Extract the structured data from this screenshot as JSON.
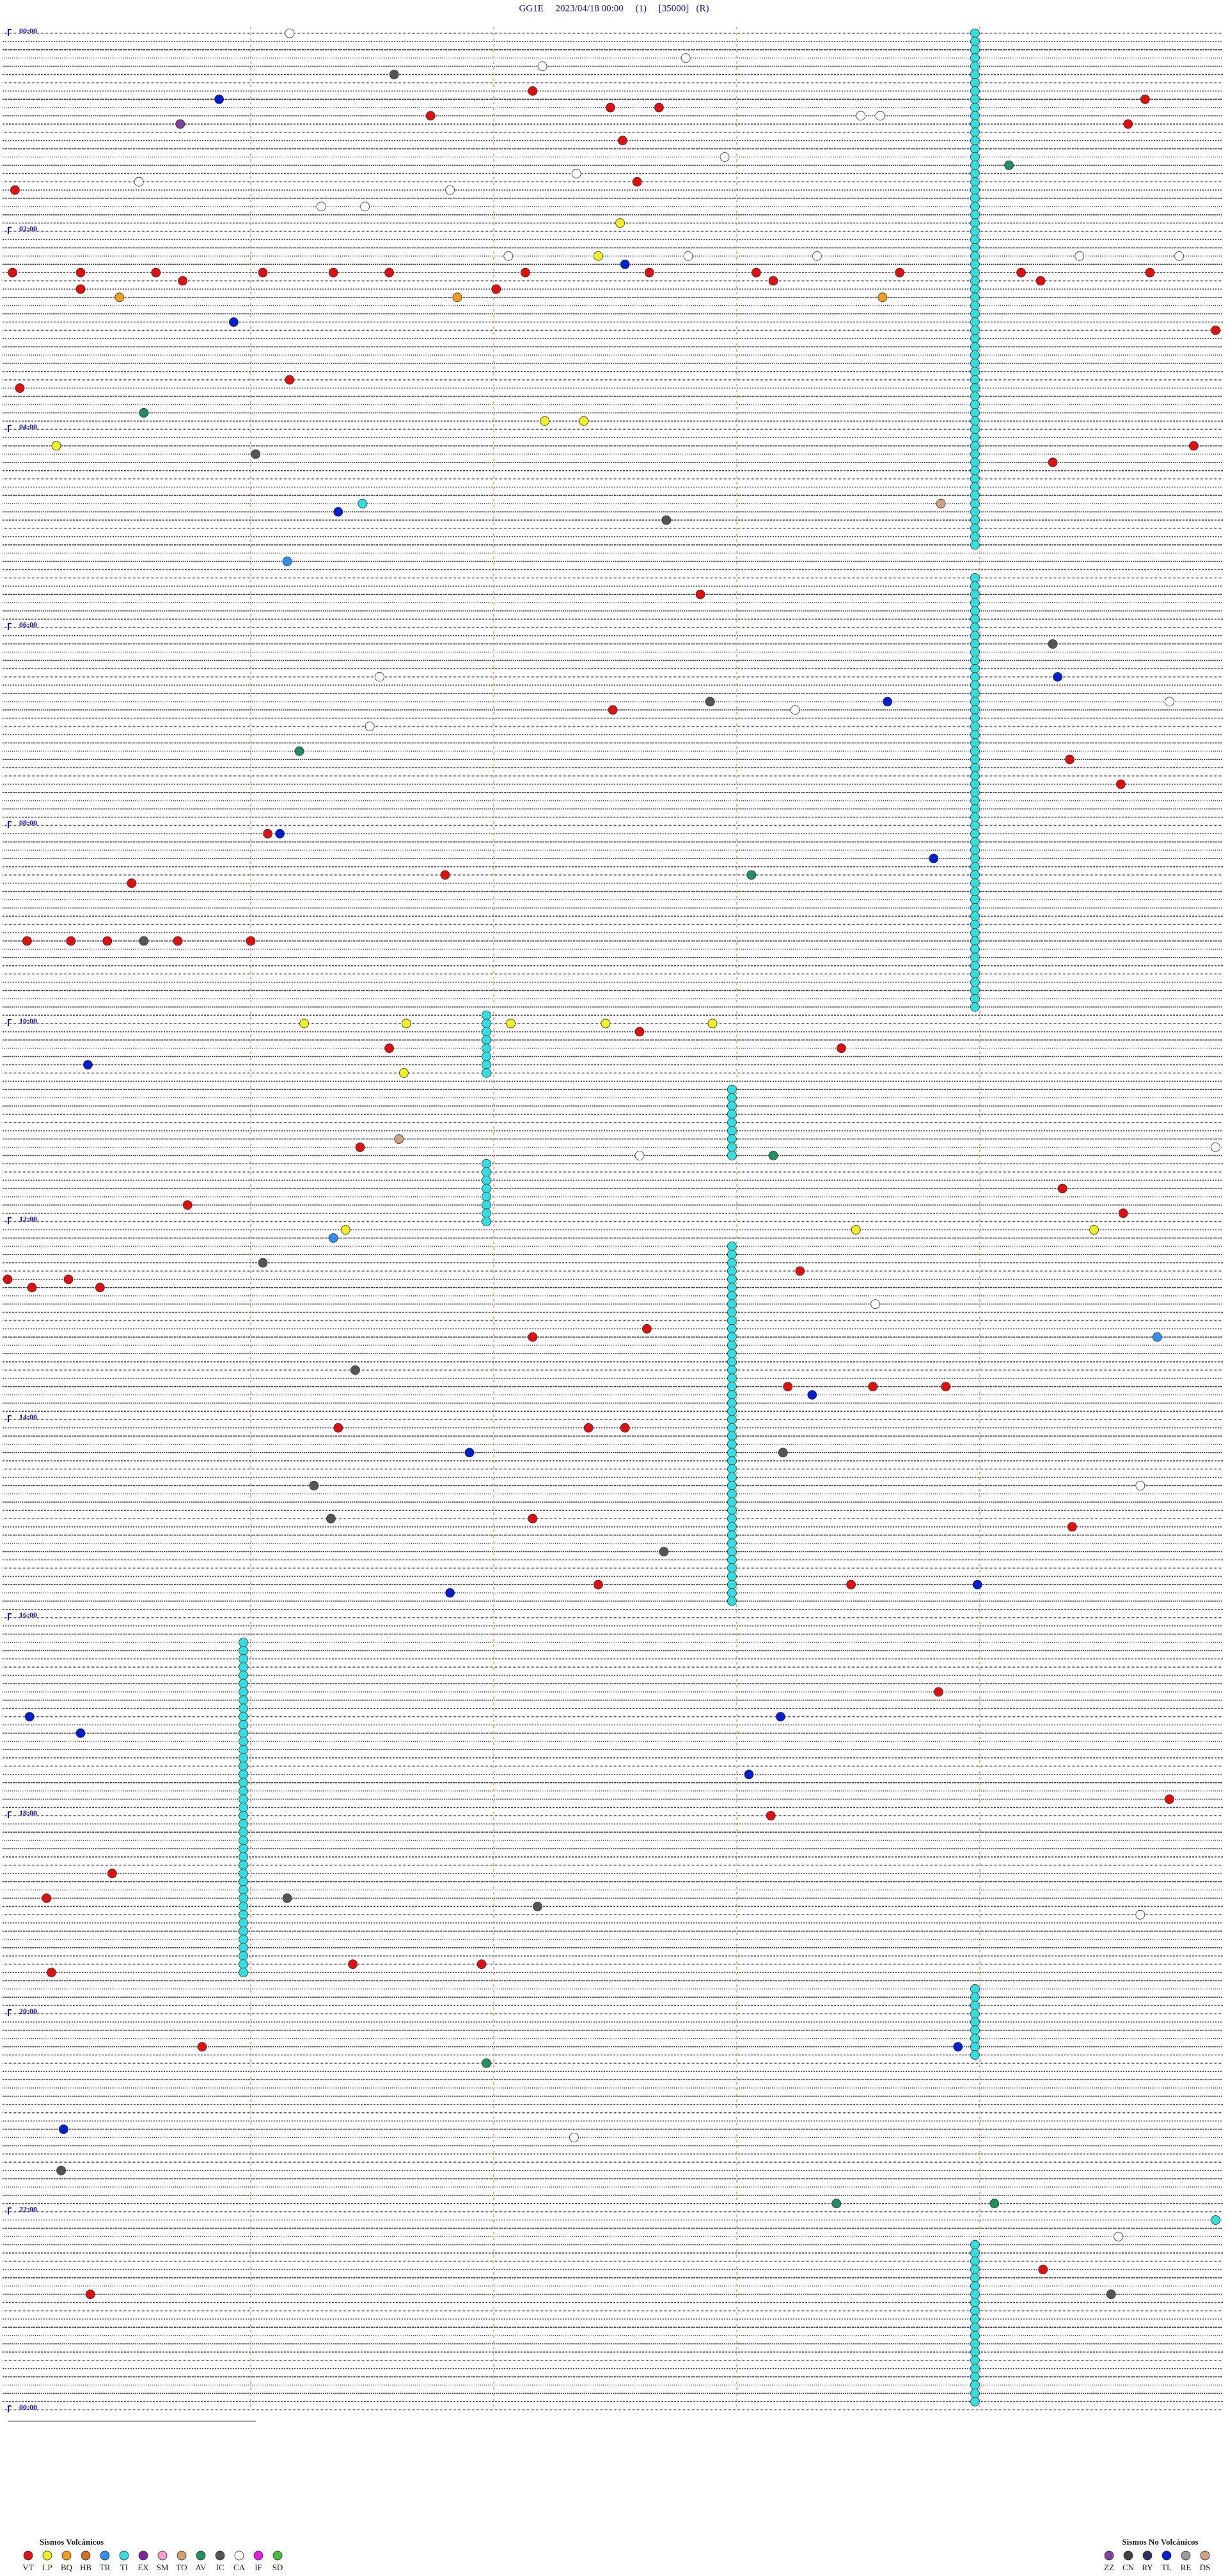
{
  "header": {
    "title": "GG1E     2023/04/18 00:00     (1)     [35000]   (R)"
  },
  "hour_labels": [
    "00:00",
    "02:00",
    "04:00",
    "06:00",
    "08:00",
    "10:00",
    "12:00",
    "14:00",
    "16:00",
    "18:00",
    "20:00",
    "22:00",
    "00:00"
  ],
  "legend": {
    "volcanic_title": "Sismos Volcánicos",
    "volcanic": [
      {
        "code": "VT",
        "color": "#e01010"
      },
      {
        "code": "LP",
        "color": "#f0f020"
      },
      {
        "code": "BQ",
        "color": "#f0a020"
      },
      {
        "code": "HB",
        "color": "#d07020"
      },
      {
        "code": "TR",
        "color": "#3090f0"
      },
      {
        "code": "TI",
        "color": "#30e0e0"
      },
      {
        "code": "EX",
        "color": "#8020a0"
      },
      {
        "code": "SM",
        "color": "#f0a0d0"
      },
      {
        "code": "TO",
        "color": "#d0a070"
      },
      {
        "code": "AV",
        "color": "#209060"
      },
      {
        "code": "IC",
        "color": "#555555"
      },
      {
        "code": "CA",
        "color": "#ffffff"
      },
      {
        "code": "IF",
        "color": "#e020e0"
      },
      {
        "code": "SD",
        "color": "#40c040"
      }
    ],
    "non_volcanic_title": "Sismos No Volcánicos",
    "non_volcanic": [
      {
        "code": "ZZ",
        "color": "#8040a0"
      },
      {
        "code": "CN",
        "color": "#404040"
      },
      {
        "code": "RY",
        "color": "#303060"
      },
      {
        "code": "TL",
        "color": "#0020d0"
      },
      {
        "code": "RE",
        "color": "#999999"
      },
      {
        "code": "DS",
        "color": "#d0a080"
      }
    ]
  },
  "tremor_spans": [
    [
      3.98,
      313.98,
      "TI"
    ],
    [
      333.98,
      593.98,
      "TI"
    ],
    [
      596.97,
      631.97,
      "TI"
    ],
    [
      642.98,
      682.98,
      "TI"
    ],
    [
      686.97,
      721.97,
      "TI"
    ],
    [
      737.98,
      952.98,
      "TI"
    ],
    [
      975.97,
      1175.97,
      "TI"
    ],
    [
      1188.98,
      1228.98,
      "TI"
    ],
    [
      1343.98,
      1438.98,
      "TI"
    ]
  ],
  "events": [
    [
      1.16,
      "CA"
    ],
    [
      26.59,
      "IC"
    ],
    [
      40.87,
      "TL"
    ],
    [
      37.16,
      "VT"
    ],
    [
      51.74,
      "VT"
    ],
    [
      47.48,
      "VT"
    ],
    [
      47.68,
      "VT"
    ],
    [
      55.71,
      "ZZ"
    ],
    [
      44.68,
      "VT"
    ],
    [
      59.61,
      "VT"
    ],
    [
      67.53,
      "VT"
    ],
    [
      84.12,
      "AV"
    ],
    [
      92.59,
      "VT"
    ],
    [
      95.03,
      "VT"
    ],
    [
      117.52,
      "LP"
    ],
    [
      145.02,
      "VT"
    ],
    [
      145.3,
      "VT"
    ],
    [
      145.61,
      "VT"
    ],
    [
      146.05,
      "VT"
    ],
    [
      146.34,
      "VT"
    ],
    [
      146.57,
      "VT"
    ],
    [
      147.13,
      "VT"
    ],
    [
      147.64,
      "VT"
    ],
    [
      148.08,
      "VT"
    ],
    [
      148.67,
      "VT"
    ],
    [
      149.17,
      "VT"
    ],
    [
      149.7,
      "VT"
    ],
    [
      150.72,
      "VT"
    ],
    [
      153.15,
      "VT"
    ],
    [
      154.25,
      "VT"
    ],
    [
      155.3,
      "VT"
    ],
    [
      157.01,
      "VT"
    ],
    [
      160.46,
      "BQ"
    ],
    [
      161.85,
      "BQ"
    ],
    [
      163.6,
      "BQ"
    ],
    [
      142.54,
      "TL"
    ],
    [
      137.43,
      "LP"
    ],
    [
      175.93,
      "TL"
    ],
    [
      184.97,
      "VT"
    ],
    [
      211.16,
      "VT"
    ],
    [
      215.05,
      "VT"
    ],
    [
      230.56,
      "AV"
    ],
    [
      237.21,
      "LP"
    ],
    [
      237.37,
      "LP"
    ],
    [
      254.88,
      "VT"
    ],
    [
      250.2,
      "LP"
    ],
    [
      264.3,
      "VT"
    ],
    [
      256.02,
      "IC"
    ],
    [
      291.36,
      "TL"
    ],
    [
      286.46,
      "TI"
    ],
    [
      288.84,
      "DS"
    ],
    [
      297.71,
      "IC"
    ],
    [
      321.15,
      "TR"
    ],
    [
      342.85,
      "VT"
    ],
    [
      412.49,
      "VT"
    ],
    [
      407.89,
      "IC"
    ],
    [
      408.62,
      "TL"
    ],
    [
      374.3,
      "IC"
    ],
    [
      394.32,
      "TL"
    ],
    [
      436.2,
      "AV"
    ],
    [
      444.37,
      "VT"
    ],
    [
      459.58,
      "VT"
    ],
    [
      486.07,
      "VT"
    ],
    [
      486.12,
      "TL"
    ],
    [
      503.81,
      "TL"
    ],
    [
      513.06,
      "AV"
    ],
    [
      550.08,
      "VT"
    ],
    [
      550.26,
      "VT"
    ],
    [
      550.41,
      "VT"
    ],
    [
      550.56,
      "IC"
    ],
    [
      550.7,
      "VT"
    ],
    [
      551.0,
      "VT"
    ],
    [
      601.22,
      "LP"
    ],
    [
      601.64,
      "LP"
    ],
    [
      602.07,
      "LP"
    ],
    [
      602.46,
      "LP"
    ],
    [
      602.9,
      "LP"
    ],
    [
      607.6,
      "VT"
    ],
    [
      618.43,
      "VT"
    ],
    [
      616.57,
      "VT"
    ],
    [
      625.33,
      "TL"
    ],
    [
      631.63,
      "LP"
    ],
    [
      676.45,
      "VT"
    ],
    [
      683.15,
      "AV"
    ],
    [
      710.74,
      "VT"
    ],
    [
      719.59,
      "VT"
    ],
    [
      704.34,
      "VT"
    ],
    [
      728.49,
      "LP"
    ],
    [
      726.39,
      "LP"
    ],
    [
      731.34,
      "TR"
    ],
    [
      729.47,
      "LP"
    ],
    [
      746.05,
      "IC"
    ],
    [
      755.0,
      "VT"
    ],
    [
      755.25,
      "VT"
    ],
    [
      760.1,
      "VT"
    ],
    [
      760.38,
      "VT"
    ],
    [
      753.26,
      "VT"
    ],
    [
      787.63,
      "VT"
    ],
    [
      792.16,
      "VT"
    ],
    [
      794.73,
      "TR"
    ],
    [
      811.43,
      "IC"
    ],
    [
      823.21,
      "VT"
    ],
    [
      823.56,
      "VT"
    ],
    [
      823.86,
      "VT"
    ],
    [
      828.31,
      "TL"
    ],
    [
      846.36,
      "VT"
    ],
    [
      847.39,
      "VT"
    ],
    [
      847.54,
      "VT"
    ],
    [
      861.9,
      "TL"
    ],
    [
      863.19,
      "IC"
    ],
    [
      881.26,
      "IC"
    ],
    [
      901.33,
      "IC"
    ],
    [
      902.16,
      "VT"
    ],
    [
      909.38,
      "VT"
    ],
    [
      922.7,
      "IC"
    ],
    [
      942.43,
      "VT"
    ],
    [
      946.82,
      "TL"
    ],
    [
      943.47,
      "VT"
    ],
    [
      943.99,
      "TL"
    ],
    [
      1008.83,
      "VT"
    ],
    [
      1020.09,
      "TL"
    ],
    [
      1023.18,
      "TL"
    ],
    [
      1030.3,
      "TL"
    ],
    [
      1058.05,
      "TL"
    ],
    [
      1083.14,
      "VT"
    ],
    [
      1074.78,
      "VT"
    ],
    [
      1115.43,
      "VT"
    ],
    [
      1130.16,
      "VT"
    ],
    [
      1131.15,
      "IC"
    ],
    [
      1137.18,
      "IC"
    ],
    [
      1171.42,
      "VT"
    ],
    [
      1171.95,
      "VT"
    ],
    [
      1175.18,
      "VT"
    ],
    [
      1220.8,
      "VT"
    ],
    [
      1223.91,
      "TL"
    ],
    [
      1231.97,
      "AV"
    ],
    [
      1270.23,
      "TL"
    ],
    [
      1295.22,
      "IC"
    ],
    [
      1318.41,
      "AV"
    ],
    [
      1319.06,
      "AV"
    ],
    [
      1359.26,
      "VT"
    ],
    [
      1374.54,
      "IC"
    ],
    [
      1370.34,
      "VT"
    ],
    [
      1329.97,
      "TI"
    ],
    [
      17.79,
      "CA"
    ],
    [
      22.2,
      "CA"
    ],
    [
      53.51,
      "CA"
    ],
    [
      53.59,
      "CA"
    ],
    [
      77.95,
      "CA"
    ],
    [
      87.34,
      "CA"
    ],
    [
      90.54,
      "CA"
    ],
    [
      96.82,
      "CA"
    ],
    [
      106.29,
      "CA"
    ],
    [
      106.47,
      "CA"
    ],
    [
      137.06,
      "CA"
    ],
    [
      137.8,
      "CA"
    ],
    [
      139.41,
      "CA"
    ],
    [
      139.82,
      "CA"
    ],
    [
      138.33,
      "CA"
    ],
    [
      421.49,
      "CA"
    ],
    [
      391.53,
      "CA"
    ],
    [
      413.24,
      "CA"
    ],
    [
      409.78,
      "CA"
    ],
    [
      679.97,
      "CA"
    ],
    [
      682.6,
      "CA"
    ],
    [
      773.57,
      "CA"
    ],
    [
      884.66,
      "CA"
    ],
    [
      1144.66,
      "CA"
    ],
    [
      1277.33,
      "CA"
    ],
    [
      1339.57,
      "CA"
    ],
    [
      671.61,
      "DS"
    ],
    [
      511.8,
      "VT"
    ],
    [
      515.51,
      "VT"
    ]
  ]
}
